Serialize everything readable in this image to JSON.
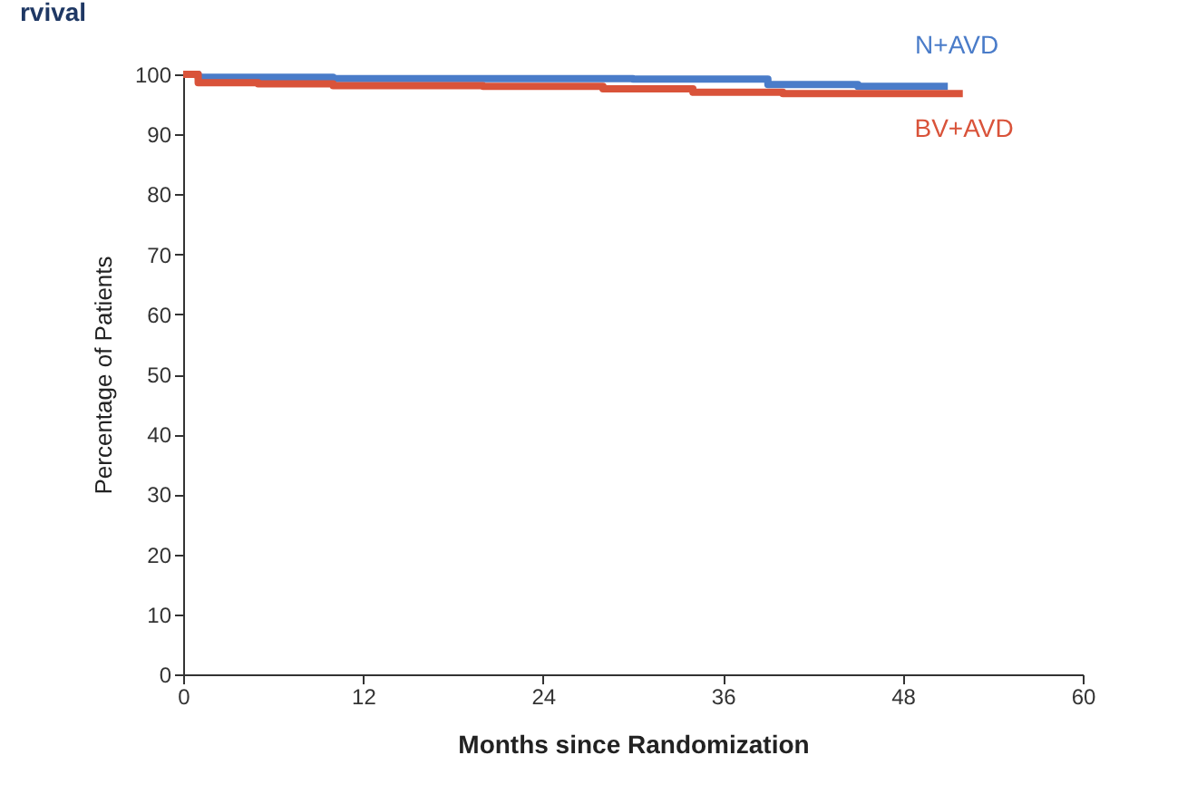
{
  "chart_data": {
    "type": "step",
    "title": "rvival",
    "xlabel": "Months since Randomization",
    "ylabel": "Percentage of Patients",
    "xlim": [
      0,
      60
    ],
    "xticks": [
      0,
      12,
      24,
      36,
      48,
      60
    ],
    "ylim": [
      0,
      100
    ],
    "yticks": [
      0,
      10,
      20,
      30,
      40,
      50,
      60,
      70,
      80,
      90,
      100
    ],
    "grid": false,
    "line_style": "solid",
    "marker": "none",
    "series": [
      {
        "name": "N+AVD",
        "color": "#4a7cc9",
        "x": [
          0,
          1,
          3,
          10,
          20,
          30,
          39,
          45,
          51
        ],
        "values": [
          100,
          99.5,
          99.5,
          99.3,
          99.3,
          99.2,
          98.3,
          98,
          98
        ]
      },
      {
        "name": "BV+AVD",
        "color": "#d9533a",
        "x": [
          0,
          1,
          5,
          10,
          20,
          28,
          34,
          40,
          52
        ],
        "values": [
          100,
          98.6,
          98.4,
          98.1,
          98,
          97.6,
          97,
          96.8,
          96.8
        ]
      }
    ]
  }
}
